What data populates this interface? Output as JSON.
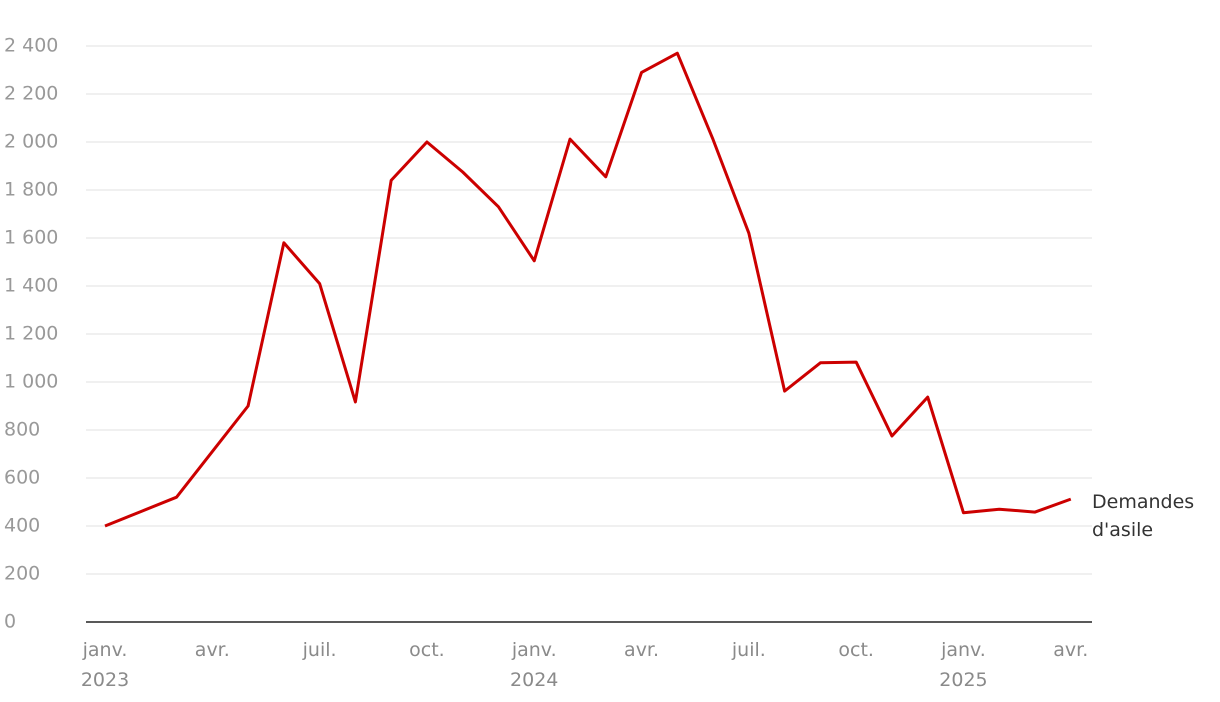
{
  "chart_data": {
    "type": "line",
    "categories": [
      "janv.",
      null,
      null,
      "avr.",
      null,
      null,
      "juil.",
      null,
      null,
      "oct.",
      null,
      null,
      "janv.",
      null,
      null,
      "avr.",
      null,
      null,
      "juil.",
      null,
      null,
      "oct.",
      null,
      null,
      "janv.",
      null,
      null,
      "avr."
    ],
    "category_years": [
      "2023",
      null,
      null,
      null,
      null,
      null,
      null,
      null,
      null,
      null,
      null,
      null,
      "2024",
      null,
      null,
      null,
      null,
      null,
      null,
      null,
      null,
      null,
      null,
      null,
      "2025",
      null,
      null,
      null
    ],
    "series": [
      {
        "name": "Demandes d'asile",
        "color": "#cc0000",
        "values": [
          400,
          460,
          520,
          710,
          900,
          1580,
          1410,
          917,
          1840,
          2000,
          1875,
          1730,
          1505,
          2012,
          1855,
          2290,
          2370,
          2010,
          1620,
          962,
          1080,
          1083,
          775,
          937,
          455,
          470,
          458,
          512
        ]
      }
    ],
    "ylim": [
      0,
      2400
    ],
    "yticks": [
      0,
      200,
      400,
      600,
      800,
      {
        "value": 1000,
        "label": "1 000"
      },
      {
        "value": 1200,
        "label": "1 200"
      },
      {
        "value": 1400,
        "label": "1 400"
      },
      {
        "value": 1600,
        "label": "1 600"
      },
      {
        "value": 1800,
        "label": "1 800"
      },
      {
        "value": 2000,
        "label": "2 000"
      },
      {
        "value": 2200,
        "label": "2 200"
      },
      {
        "value": 2400,
        "label": "2 400"
      }
    ],
    "grid": true
  }
}
